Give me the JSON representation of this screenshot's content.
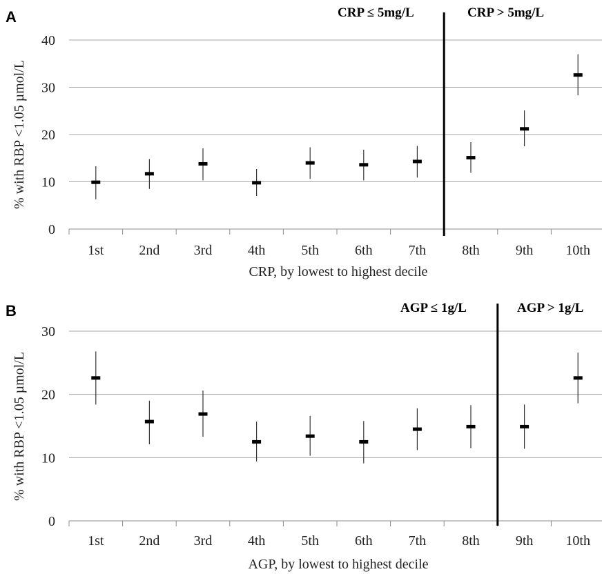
{
  "chart_data": [
    {
      "type": "scatter",
      "panel_label": "A",
      "xlabel": "CRP, by lowest to highest decile",
      "ylabel": "% with RBP <1.05 µmol/L",
      "categories": [
        "1st",
        "2nd",
        "3rd",
        "4th",
        "5th",
        "6th",
        "7th",
        "8th",
        "9th",
        "10th"
      ],
      "values": [
        9.9,
        11.7,
        13.8,
        9.8,
        14.0,
        13.6,
        14.3,
        15.1,
        21.2,
        32.6
      ],
      "ci_low": [
        6.3,
        8.5,
        10.3,
        7.0,
        10.6,
        10.3,
        10.9,
        11.9,
        17.5,
        28.3
      ],
      "ci_high": [
        13.3,
        14.8,
        17.1,
        12.7,
        17.3,
        16.8,
        17.6,
        18.4,
        25.1,
        37.0
      ],
      "ylim": [
        0,
        40
      ],
      "yticks": [
        "0",
        "10",
        "20",
        "30",
        "40"
      ],
      "grid": true,
      "divider_after_index": 6.5,
      "threshold_left": "CRP ≤ 5mg/L",
      "threshold_right": "CRP > 5mg/L"
    },
    {
      "type": "scatter",
      "panel_label": "B",
      "xlabel": "AGP, by lowest to highest decile",
      "ylabel": "% with RBP <1.05 µmol/L",
      "categories": [
        "1st",
        "2nd",
        "3rd",
        "4th",
        "5th",
        "6th",
        "7th",
        "8th",
        "9th",
        "10th"
      ],
      "values": [
        22.6,
        15.7,
        16.9,
        12.5,
        13.4,
        12.5,
        14.5,
        14.9,
        14.9,
        22.6
      ],
      "ci_low": [
        18.4,
        12.1,
        13.3,
        9.4,
        10.3,
        9.1,
        11.2,
        11.5,
        11.4,
        18.6
      ],
      "ci_high": [
        26.8,
        19.0,
        20.6,
        15.7,
        16.6,
        15.8,
        17.8,
        18.3,
        18.4,
        26.6
      ],
      "ylim": [
        0,
        30
      ],
      "yticks": [
        "0",
        "10",
        "20",
        "30"
      ],
      "grid": true,
      "divider_after_index": 7.5,
      "threshold_left": "AGP ≤ 1g/L",
      "threshold_right": "AGP > 1g/L"
    }
  ]
}
